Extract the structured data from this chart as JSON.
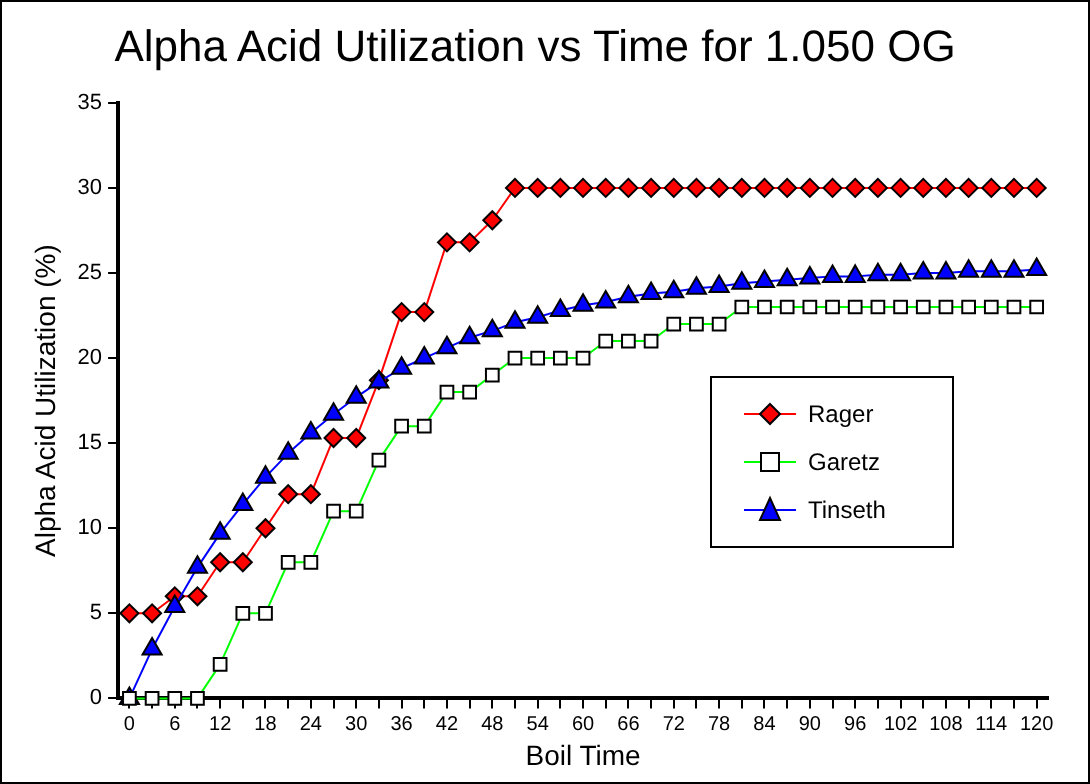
{
  "chart_data": {
    "type": "line",
    "title": "Alpha Acid Utilization vs Time for 1.050 OG",
    "xlabel": "Boil Time",
    "ylabel": "Alpha Acid Utilization (%)",
    "categories": [
      "0",
      null,
      "6",
      null,
      "12",
      null,
      "18",
      null,
      "24",
      null,
      "30",
      null,
      "36",
      null,
      "42",
      null,
      "48",
      null,
      "54",
      null,
      "60",
      null,
      "66",
      null,
      "72",
      null,
      "78",
      null,
      "84",
      null,
      "90",
      null,
      "96",
      null,
      "102",
      null,
      "108",
      null,
      "114",
      null,
      "120"
    ],
    "series": [
      {
        "name": "Rager",
        "color": "#ff0000",
        "marker": "diamond",
        "values": [
          5,
          5,
          6,
          6,
          8,
          8,
          10,
          12,
          12,
          15.3,
          15.3,
          18.7,
          22.7,
          22.7,
          26.8,
          26.8,
          28.1,
          30,
          30,
          30,
          30,
          30,
          30,
          30,
          30,
          30,
          30,
          30,
          30,
          30,
          30,
          30,
          30,
          30,
          30,
          30,
          30,
          30,
          30,
          30,
          30
        ]
      },
      {
        "name": "Garetz",
        "color": "#00ff00",
        "marker": "square",
        "values": [
          0,
          0,
          0,
          0,
          2,
          5,
          5,
          8,
          8,
          11,
          11,
          14,
          16,
          16,
          18,
          18,
          19,
          20,
          20,
          20,
          20,
          21,
          21,
          21,
          22,
          22,
          22,
          23,
          23,
          23,
          23,
          23,
          23,
          23,
          23,
          23,
          23,
          23,
          23,
          23,
          23
        ]
      },
      {
        "name": "Tinseth",
        "color": "#0000ff",
        "marker": "triangle",
        "values": [
          0,
          2.9,
          5.4,
          7.7,
          9.7,
          11.4,
          13.0,
          14.4,
          15.6,
          16.7,
          17.7,
          18.6,
          19.4,
          20.0,
          20.6,
          21.2,
          21.6,
          22.1,
          22.4,
          22.8,
          23.1,
          23.3,
          23.6,
          23.8,
          23.9,
          24.1,
          24.2,
          24.4,
          24.5,
          24.6,
          24.7,
          24.8,
          24.8,
          24.9,
          24.9,
          25.0,
          25.0,
          25.1,
          25.1,
          25.1,
          25.2
        ]
      }
    ],
    "ylim": [
      0,
      35
    ],
    "yticks": [
      0,
      5,
      10,
      15,
      20,
      25,
      30,
      35
    ],
    "grid": false,
    "legend": "right",
    "line_style": "solid"
  }
}
